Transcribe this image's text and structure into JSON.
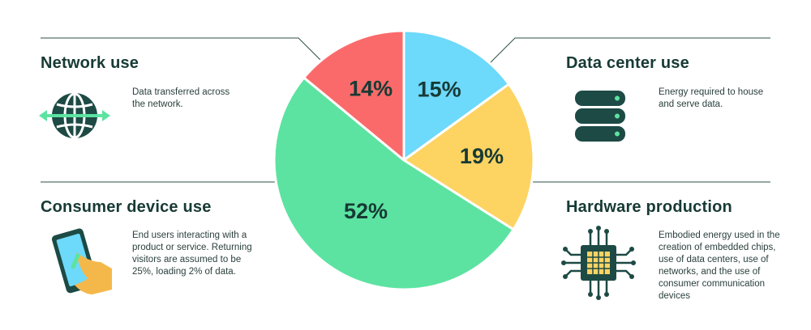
{
  "sections": {
    "network": {
      "title": "Network use",
      "description": "Data transferred across the network.",
      "icon": "globe-arrows-icon"
    },
    "datacenter": {
      "title": "Data center use",
      "description": "Energy required to house and serve data.",
      "icon": "server-stack-icon"
    },
    "consumer": {
      "title": "Consumer device use",
      "description": "End users interacting with a product or service. Returning visitors are assumed to be 25%, loading 2% of data.",
      "icon": "hand-phone-icon"
    },
    "hardware": {
      "title": "Hardware production",
      "description": "Embodied energy used in the creation of embedded chips, use of data centers, use of networks, and the use of consumer communication devices",
      "icon": "chip-icon"
    }
  },
  "colors": {
    "network": "#fb6a6a",
    "datacenter": "#6dd9fb",
    "hardware": "#fdd362",
    "consumer": "#5ce3a1",
    "text": "#173a35",
    "icon": "#1d4a44",
    "icon_accent": "#5ce3a1",
    "line": "#2f4f4a"
  },
  "chart_data": {
    "type": "pie",
    "start_angle_deg": 0,
    "direction": "clockwise",
    "slices": [
      {
        "category": "Data center use",
        "value": 15,
        "label": "15%",
        "color": "#6dd9fb"
      },
      {
        "category": "Hardware production",
        "value": 19,
        "label": "19%",
        "color": "#fdd362"
      },
      {
        "category": "Consumer device use",
        "value": 52,
        "label": "52%",
        "color": "#5ce3a1"
      },
      {
        "category": "Network use",
        "value": 14,
        "label": "14%",
        "color": "#fb6a6a"
      }
    ]
  }
}
